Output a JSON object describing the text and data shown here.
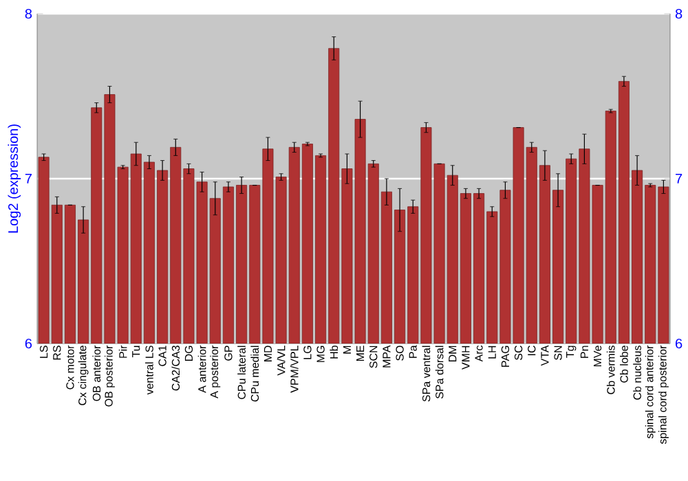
{
  "chart_data": {
    "type": "bar",
    "ylabel": "Log2 (expression)",
    "categories": [
      "LS",
      "RS",
      "Cx motor",
      "Cx cingulate",
      "OB anterior",
      "OB posterior",
      "Pir",
      "Tu",
      "ventral LS",
      "CA1",
      "CA2/CA3",
      "DG",
      "A anterior",
      "A posterior",
      "GP",
      "CPu lateral",
      "CPu medial",
      "MD",
      "VA/VL",
      "VPM/VPL",
      "LG",
      "MG",
      "Hb",
      "M",
      "ME",
      "SCN",
      "MPA",
      "SO",
      "Pa",
      "SPa ventral",
      "SPa dorsal",
      "DM",
      "VMH",
      "Arc",
      "LH",
      "PAG",
      "SC",
      "IC",
      "VTA",
      "SN",
      "Tg",
      "Pn",
      "MVe",
      "Cb vermis",
      "Cb lobe",
      "Cb nucleus",
      "spinal cord anterior",
      "spinal cord posterior"
    ],
    "values": [
      7.13,
      6.84,
      6.84,
      6.75,
      7.43,
      7.51,
      7.07,
      7.15,
      7.1,
      7.05,
      7.19,
      7.06,
      6.98,
      6.88,
      6.95,
      6.96,
      6.96,
      7.18,
      7.01,
      7.19,
      7.21,
      7.14,
      7.79,
      7.06,
      7.36,
      7.09,
      6.92,
      6.81,
      6.83,
      7.31,
      7.09,
      7.02,
      6.91,
      6.91,
      6.8,
      6.93,
      7.31,
      7.19,
      7.08,
      6.93,
      7.12,
      7.18,
      6.96,
      7.41,
      7.59,
      7.05,
      6.96,
      6.95
    ],
    "errors": [
      0.02,
      0.05,
      0,
      0.08,
      0.03,
      0.05,
      0.01,
      0.07,
      0.04,
      0.06,
      0.05,
      0.03,
      0.06,
      0.1,
      0.03,
      0.05,
      0,
      0.07,
      0.02,
      0.03,
      0.01,
      0.01,
      0.07,
      0.09,
      0.11,
      0.02,
      0.08,
      0.13,
      0.04,
      0.03,
      0,
      0.06,
      0.03,
      0.03,
      0.03,
      0.05,
      0,
      0.03,
      0.09,
      0.1,
      0.03,
      0.09,
      0,
      0.01,
      0.03,
      0.09,
      0.01,
      0.04
    ],
    "color": "#b03232",
    "ylim": [
      6,
      8
    ],
    "yticks": [
      6,
      7,
      8
    ],
    "y2lim": [
      6,
      8
    ],
    "y2ticks": [
      6,
      7,
      8
    ],
    "grid": "y"
  }
}
